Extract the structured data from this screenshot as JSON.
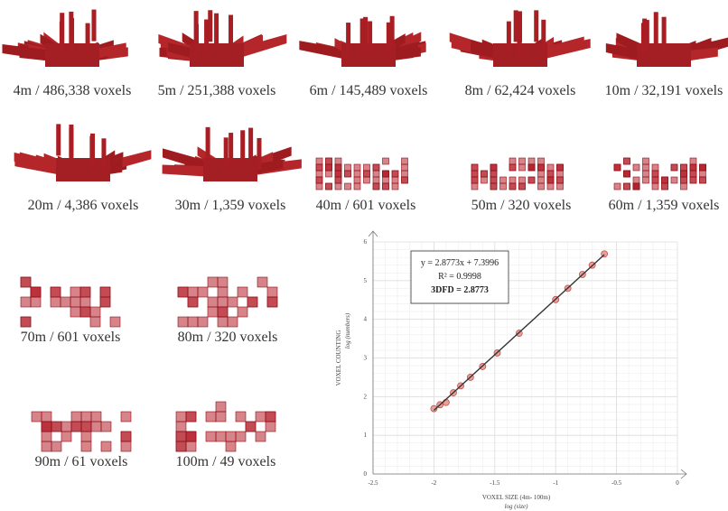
{
  "panels": [
    {
      "label": "4m / 486,338 voxels"
    },
    {
      "label": "5m / 251,388 voxels"
    },
    {
      "label": "6m / 145,489 voxels"
    },
    {
      "label": "8m / 62,424 voxels"
    },
    {
      "label": "10m / 32,191 voxels"
    },
    {
      "label": "20m / 4,386 voxels"
    },
    {
      "label": "30m / 1,359 voxels"
    },
    {
      "label": "40m / 601 voxels"
    },
    {
      "label": "50m / 320 voxels"
    },
    {
      "label": "60m / 1,359 voxels"
    },
    {
      "label": "70m / 601 voxels"
    },
    {
      "label": "80m / 320 voxels"
    },
    {
      "label": "90m / 61 voxels"
    },
    {
      "label": "100m / 49 voxels"
    }
  ],
  "chart_data": {
    "type": "scatter",
    "x_label": "VOXEL SIZE (4m- 100m)",
    "x_sublabel": "log (size)",
    "y_label": "VOXEL COUNTING",
    "y_sublabel": "log (numbers)",
    "annotations": [
      "y = 2.8773x + 7.3996",
      "R² = 0.9998",
      "3DFD = 2.8773"
    ],
    "fit": {
      "slope": 2.8773,
      "intercept": 7.3996
    },
    "x": [
      -2,
      -1.95,
      -1.9,
      -1.84,
      -1.78,
      -1.7,
      -1.6,
      -1.48,
      -1.3,
      -1,
      -0.9,
      -0.78,
      -0.7,
      -0.6
    ],
    "values": [
      1.69,
      1.79,
      1.85,
      2.1,
      2.28,
      2.5,
      2.78,
      3.13,
      3.64,
      4.51,
      4.8,
      5.16,
      5.4,
      5.69
    ],
    "color": "#e8a09a",
    "line_color": "#333333",
    "xlim": [
      -2.5,
      0
    ],
    "xticks": [
      -2.5,
      -2,
      -1.5,
      -1,
      -0.5,
      0
    ],
    "ylim": [
      0,
      6
    ],
    "yticks": [
      0,
      1,
      2,
      3,
      4,
      5,
      6
    ],
    "grid": true
  }
}
